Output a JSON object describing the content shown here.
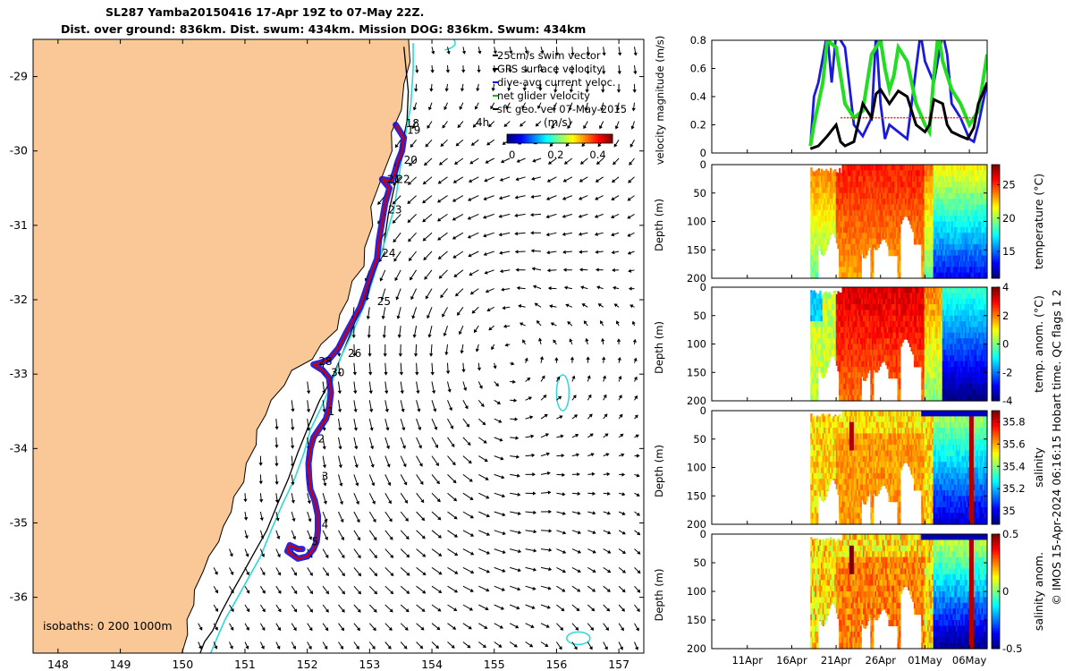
{
  "title": {
    "line1": "SL287 Yamba20150416 17-Apr 19Z to 07-May 22Z.",
    "line2": "Dist. over ground: 836km. Dist. swum: 434km. Mission DOG: 836km. Swum: 434km"
  },
  "colors": {
    "land": "#f9c896",
    "track_red": "#cc0000",
    "track_blue": "#1010dd",
    "isobath_200": "#000000",
    "isobath_1000": "#2ed8d8",
    "speed_black": "#000000",
    "speed_green": "#22dd22",
    "speed_blue": "#1a1add",
    "red_marker": "#ee2222"
  },
  "map": {
    "legend": [
      {
        "text": "25cm/s swim vector",
        "color": "#000000"
      },
      {
        "text": "GPS surface velocity",
        "color": "#000000"
      },
      {
        "text": "dive-avg current veloc.",
        "color": "#0000ee"
      },
      {
        "text": "net glider velocity",
        "color": "#00bb00"
      },
      {
        "text": "sfc geo. vel 07-May-2015",
        "color": "#000000"
      }
    ],
    "colorbar": {
      "ticks": [
        "0",
        "0.2",
        "0.4"
      ],
      "unit": "(m/s)",
      "extra": "4h"
    },
    "isobath_note": "isobaths: 0   200  1000m",
    "xticks": [
      "148",
      "149",
      "150",
      "151",
      "152",
      "153",
      "154",
      "155",
      "156",
      "157"
    ],
    "yticks": [
      "-29",
      "-30",
      "-31",
      "-32",
      "-33",
      "-34",
      "-35",
      "-36"
    ],
    "day_labels": [
      {
        "t": "18",
        "lon": 153.58,
        "lat": -29.68
      },
      {
        "t": "19",
        "lon": 153.6,
        "lat": -29.77
      },
      {
        "t": "20",
        "lon": 153.55,
        "lat": -30.17
      },
      {
        "t": "21",
        "lon": 153.28,
        "lat": -30.43
      },
      {
        "t": "22",
        "lon": 153.43,
        "lat": -30.43
      },
      {
        "t": "23",
        "lon": 153.3,
        "lat": -30.84
      },
      {
        "t": "24",
        "lon": 153.2,
        "lat": -31.42
      },
      {
        "t": "25",
        "lon": 153.12,
        "lat": -32.07
      },
      {
        "t": "26",
        "lon": 152.65,
        "lat": -32.77
      },
      {
        "t": "28",
        "lon": 152.18,
        "lat": -32.88
      },
      {
        "t": "30",
        "lon": 152.38,
        "lat": -33.03
      },
      {
        "t": "1",
        "lon": 152.33,
        "lat": -33.55
      },
      {
        "t": "2",
        "lon": 152.17,
        "lat": -33.92
      },
      {
        "t": "3",
        "lon": 152.23,
        "lat": -34.42
      },
      {
        "t": "4",
        "lon": 152.23,
        "lat": -35.07
      },
      {
        "t": "5",
        "lon": 152.07,
        "lat": -35.3
      }
    ]
  },
  "chart_data": [
    {
      "type": "scatter",
      "panel": "map",
      "title": "SL287 Yamba20150416 17-Apr 19Z to 07-May 22Z.",
      "xlim": [
        147.6,
        157.4
      ],
      "ylim": [
        -36.75,
        -28.5
      ],
      "x_ticks": [
        148,
        149,
        150,
        151,
        152,
        153,
        154,
        155,
        156,
        157
      ],
      "y_ticks": [
        -29,
        -30,
        -31,
        -32,
        -33,
        -34,
        -35,
        -36
      ],
      "series": [
        {
          "name": "glider track",
          "x": [
            153.42,
            153.55,
            153.52,
            153.45,
            153.4,
            153.35,
            153.2,
            153.32,
            153.25,
            153.2,
            153.15,
            153.12,
            153.05,
            152.95,
            152.85,
            152.62,
            152.5,
            152.35,
            152.2,
            152.1,
            152.25,
            152.35,
            152.38,
            152.35,
            152.3,
            152.18,
            152.1,
            152.05,
            152.02,
            152.03,
            152.05,
            152.12,
            152.17,
            152.17,
            152.15,
            152.1,
            152.0,
            151.85,
            151.68,
            151.72,
            151.85,
            151.92
          ],
          "y": [
            -29.65,
            -29.82,
            -30.0,
            -30.15,
            -30.3,
            -30.4,
            -30.38,
            -30.5,
            -30.7,
            -30.95,
            -31.2,
            -31.45,
            -31.6,
            -31.85,
            -32.1,
            -32.45,
            -32.65,
            -32.8,
            -32.85,
            -32.87,
            -32.95,
            -33.05,
            -33.25,
            -33.45,
            -33.6,
            -33.75,
            -33.85,
            -34.0,
            -34.2,
            -34.4,
            -34.55,
            -34.7,
            -34.9,
            -35.1,
            -35.25,
            -35.35,
            -35.45,
            -35.48,
            -35.38,
            -35.3,
            -35.35,
            -35.35
          ]
        },
        {
          "name": "200m isobath",
          "x": [
            153.55,
            153.62,
            153.6,
            153.5,
            153.42,
            153.3,
            153.22,
            153.05,
            152.88,
            152.72,
            152.55,
            152.4,
            152.2,
            152.02,
            151.85,
            151.7,
            151.52,
            151.35,
            151.15,
            150.95,
            150.78,
            150.62,
            150.48,
            150.35,
            150.28
          ],
          "y": [
            -28.6,
            -29.2,
            -29.6,
            -30.0,
            -30.4,
            -30.85,
            -31.3,
            -31.7,
            -32.05,
            -32.4,
            -32.75,
            -33.05,
            -33.35,
            -33.7,
            -34.05,
            -34.4,
            -34.75,
            -35.1,
            -35.4,
            -35.7,
            -35.95,
            -36.2,
            -36.45,
            -36.6,
            -36.75
          ]
        },
        {
          "name": "1000m isobath",
          "x": [
            153.7,
            153.7,
            153.66,
            153.55,
            153.48,
            153.4,
            153.25,
            153.1,
            152.95,
            152.75,
            152.55,
            152.4,
            152.25,
            152.05,
            151.95,
            151.8,
            151.6,
            151.42,
            151.25,
            151.05,
            150.85,
            150.68,
            150.55,
            150.45
          ],
          "y": [
            -28.55,
            -28.9,
            -29.4,
            -29.9,
            -30.3,
            -30.75,
            -31.2,
            -31.6,
            -32.0,
            -32.4,
            -32.75,
            -33.1,
            -33.4,
            -33.75,
            -34.05,
            -34.4,
            -34.75,
            -35.1,
            -35.45,
            -35.75,
            -36.05,
            -36.3,
            -36.55,
            -36.75
          ]
        }
      ]
    },
    {
      "type": "line",
      "panel": "velocity",
      "ylabel": "velocity magnitude (m/s)",
      "ylim": [
        0,
        0.8
      ],
      "y_ticks": [
        0,
        0.2,
        0.4,
        0.6,
        0.8
      ],
      "xlim": [
        7,
        38
      ],
      "x_ticks": [
        11,
        16,
        21,
        26,
        31,
        36
      ],
      "x_tick_labels": [
        "11Apr",
        "16Apr",
        "21Apr",
        "26Apr",
        "01May",
        "06May"
      ],
      "series": [
        {
          "name": "speed",
          "color": "#000000",
          "x": [
            18.1,
            19,
            20,
            21,
            21.5,
            22,
            23,
            24,
            25,
            25.5,
            26,
            27,
            28,
            29,
            30,
            31,
            31.5,
            32,
            33,
            33.5,
            34,
            35,
            35.8,
            36.5,
            37,
            38
          ],
          "y": [
            0.03,
            0.05,
            0.12,
            0.2,
            0.08,
            0.05,
            0.08,
            0.35,
            0.25,
            0.42,
            0.45,
            0.35,
            0.44,
            0.4,
            0.2,
            0.15,
            0.2,
            0.38,
            0.35,
            0.2,
            0.15,
            0.12,
            0.1,
            0.18,
            0.35,
            0.5
          ]
        },
        {
          "name": "green",
          "color": "#22dd22",
          "x": [
            18.1,
            18.5,
            19,
            19.5,
            20,
            21,
            21.5,
            22,
            23,
            24,
            25,
            26,
            26.5,
            27,
            27.5,
            28,
            29,
            30,
            31,
            31.5,
            32,
            32.5,
            33,
            34,
            35,
            36,
            37,
            38
          ],
          "y": [
            0.05,
            0.2,
            0.35,
            0.5,
            0.8,
            0.75,
            0.55,
            0.35,
            0.25,
            0.3,
            0.7,
            0.8,
            0.6,
            0.45,
            0.55,
            0.75,
            0.65,
            0.35,
            0.2,
            0.15,
            0.55,
            0.85,
            0.65,
            0.45,
            0.35,
            0.2,
            0.3,
            0.7
          ]
        },
        {
          "name": "blue",
          "color": "#1a1add",
          "x": [
            18.1,
            18.5,
            19,
            20,
            20.5,
            21,
            22,
            23,
            24,
            25,
            25.5,
            26,
            26.5,
            27,
            28,
            29,
            30,
            30.5,
            31,
            32,
            33,
            33.5,
            34,
            35,
            36,
            36.5,
            37,
            38
          ],
          "y": [
            0.05,
            0.4,
            0.5,
            0.85,
            0.5,
            0.85,
            0.75,
            0.2,
            0.12,
            0.25,
            0.85,
            0.35,
            0.1,
            0.2,
            0.15,
            0.1,
            0.6,
            0.85,
            0.65,
            0.5,
            0.85,
            0.7,
            0.35,
            0.25,
            0.1,
            0.08,
            0.2,
            0.5
          ]
        },
        {
          "name": "red",
          "color": "#ee2222",
          "x": [
            21.5,
            36.5
          ],
          "y": [
            0.25,
            0.25
          ]
        }
      ]
    },
    {
      "type": "heatmap",
      "panel": "temperature",
      "ylabel": "Depth (m)",
      "y_ticks": [
        0,
        50,
        100,
        150,
        200
      ],
      "ylim": [
        0,
        200
      ],
      "colorbar_label": "temperature (°C)",
      "colorbar_ticks": [
        15,
        20,
        25
      ],
      "clim": [
        11,
        28
      ]
    },
    {
      "type": "heatmap",
      "panel": "temp_anom",
      "ylabel": "Depth (m)",
      "y_ticks": [
        0,
        50,
        100,
        150,
        200
      ],
      "ylim": [
        0,
        200
      ],
      "colorbar_label": "temp. anom. (°C)",
      "colorbar_ticks": [
        -4,
        -2,
        0,
        2,
        4
      ],
      "clim": [
        -4,
        4
      ]
    },
    {
      "type": "heatmap",
      "panel": "salinity",
      "ylabel": "Depth (m)",
      "y_ticks": [
        0,
        50,
        100,
        150,
        200
      ],
      "ylim": [
        0,
        200
      ],
      "colorbar_label": "salinity",
      "colorbar_ticks": [
        35,
        35.2,
        35.4,
        35.6,
        35.8
      ],
      "clim": [
        34.88,
        35.9
      ]
    },
    {
      "type": "heatmap",
      "panel": "salinity_anom",
      "ylabel": "Depth (m)",
      "y_ticks": [
        0,
        50,
        100,
        150,
        200
      ],
      "ylim": [
        0,
        200
      ],
      "colorbar_label": "salinity anom.",
      "colorbar_ticks": [
        -0.5,
        0,
        0.5
      ],
      "clim": [
        -0.5,
        0.5
      ]
    }
  ],
  "sections_end_day": 38,
  "sections_start_day": 18.1,
  "footer": "© IMOS 15-Apr-2024 06:16:15 Hobart time. QC flags 1  2",
  "series_colors": {
    "panels": "jet"
  }
}
